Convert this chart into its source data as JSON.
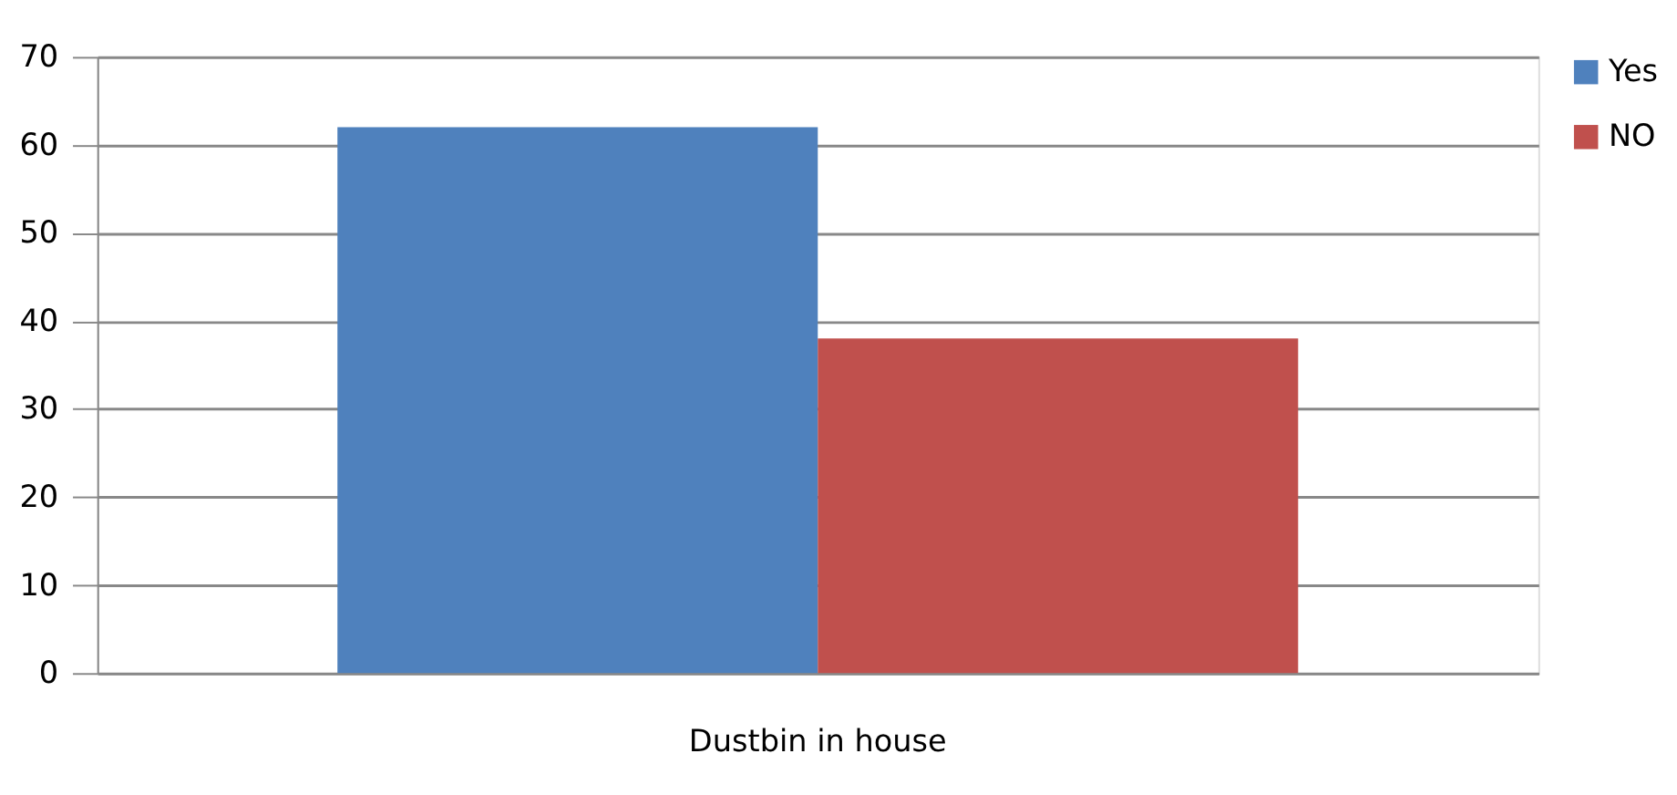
{
  "chart_data": {
    "type": "bar",
    "categories": [
      "Dustbin in house"
    ],
    "series": [
      {
        "name": "Yes",
        "color": "#4f81bd",
        "values": [
          62
        ]
      },
      {
        "name": "NO",
        "color": "#c0504d",
        "values": [
          38
        ]
      }
    ],
    "ylim": [
      0,
      70
    ],
    "yticks": [
      0,
      10,
      20,
      30,
      40,
      50,
      60,
      70
    ],
    "grid": "y",
    "legend": "right"
  }
}
